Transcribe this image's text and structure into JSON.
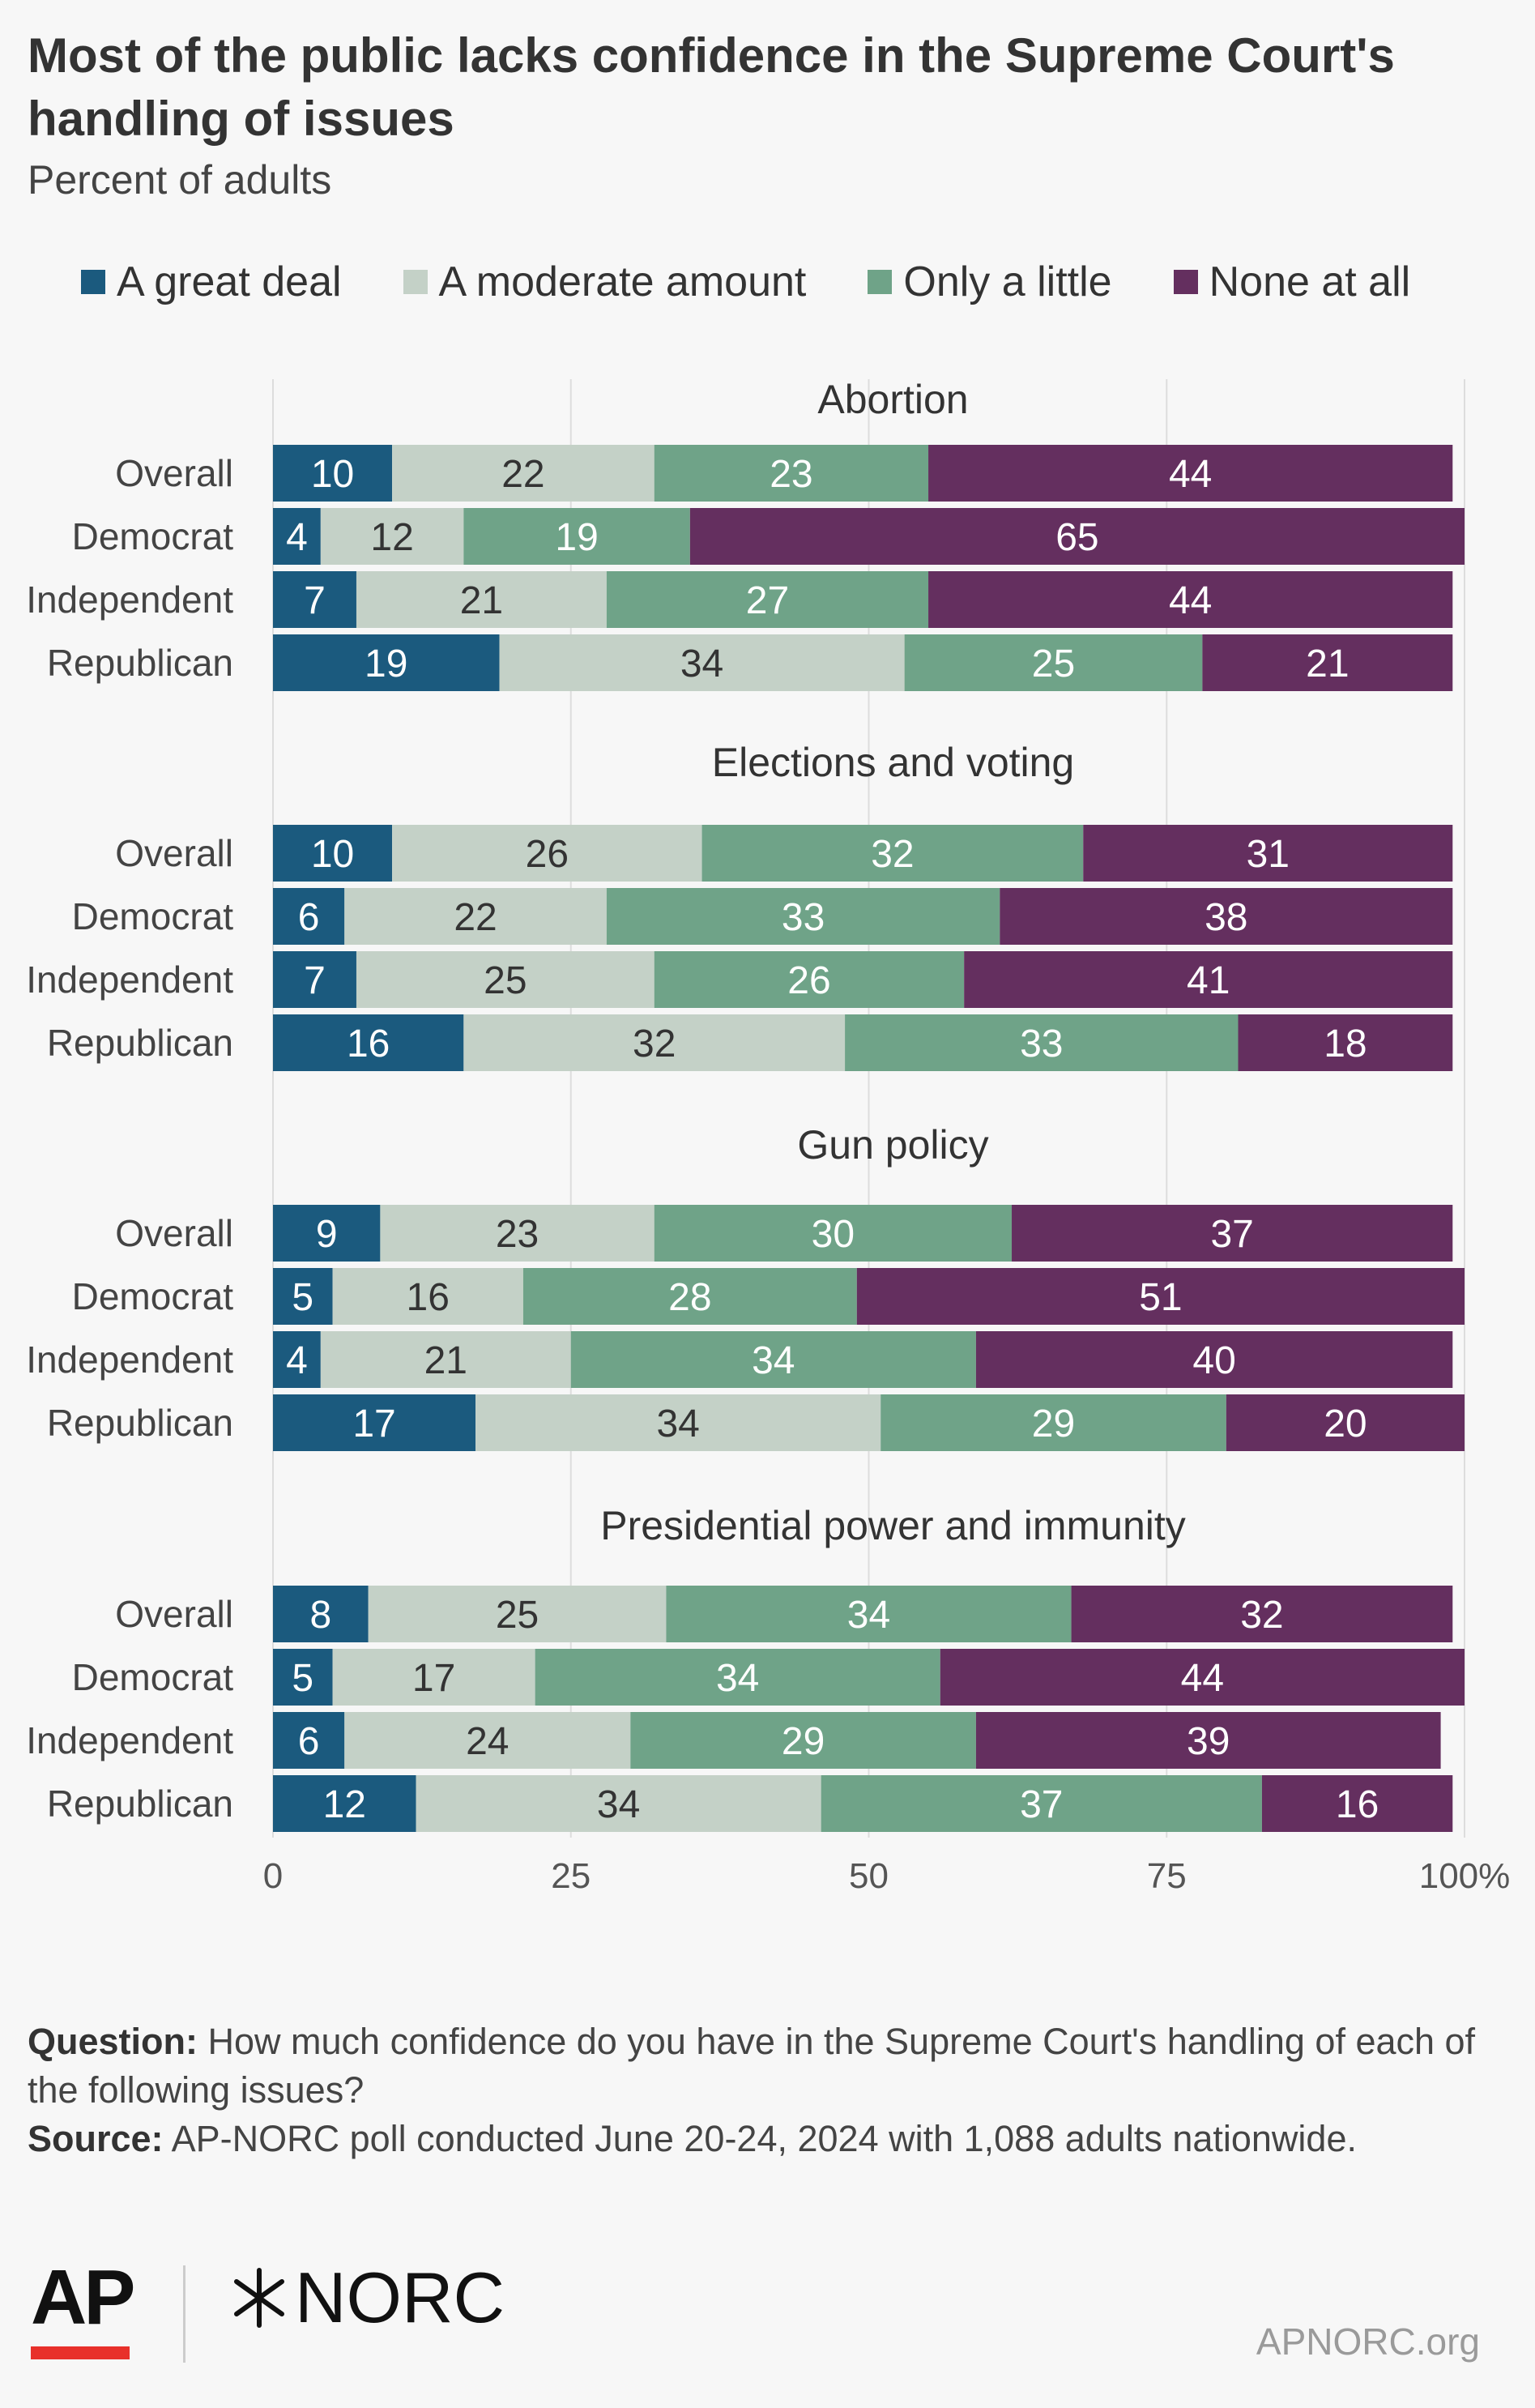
{
  "header": {
    "title": "Most of the public lacks confidence in the Supreme Court's handling of issues",
    "subtitle": "Percent of adults"
  },
  "chart_data": {
    "type": "bar",
    "orientation": "horizontal",
    "stacked": true,
    "xlim": [
      0,
      100
    ],
    "xticks": [
      "0",
      "25",
      "50",
      "75",
      "100%"
    ],
    "grid": true,
    "legend_placement": "top",
    "series": [
      {
        "name": "A great deal",
        "color": "#1b5a7e"
      },
      {
        "name": "A moderate amount",
        "color": "#c4d1c7"
      },
      {
        "name": "Only a little",
        "color": "#6fa388"
      },
      {
        "name": "None at all",
        "color": "#642f5f"
      }
    ],
    "label_colors": [
      "#ffffff",
      "#333333",
      "#ffffff",
      "#ffffff"
    ],
    "panels": [
      {
        "title": "Abortion",
        "rows": [
          {
            "label": "Overall",
            "values": [
              10,
              22,
              23,
              44
            ]
          },
          {
            "label": "Democrat",
            "values": [
              4,
              12,
              19,
              65
            ]
          },
          {
            "label": "Independent",
            "values": [
              7,
              21,
              27,
              44
            ]
          },
          {
            "label": "Republican",
            "values": [
              19,
              34,
              25,
              21
            ]
          }
        ]
      },
      {
        "title": "Elections and voting",
        "rows": [
          {
            "label": "Overall",
            "values": [
              10,
              26,
              32,
              31
            ]
          },
          {
            "label": "Democrat",
            "values": [
              6,
              22,
              33,
              38
            ]
          },
          {
            "label": "Independent",
            "values": [
              7,
              25,
              26,
              41
            ]
          },
          {
            "label": "Republican",
            "values": [
              16,
              32,
              33,
              18
            ]
          }
        ]
      },
      {
        "title": "Gun policy",
        "rows": [
          {
            "label": "Overall",
            "values": [
              9,
              23,
              30,
              37
            ]
          },
          {
            "label": "Democrat",
            "values": [
              5,
              16,
              28,
              51
            ]
          },
          {
            "label": "Independent",
            "values": [
              4,
              21,
              34,
              40
            ]
          },
          {
            "label": "Republican",
            "values": [
              17,
              34,
              29,
              20
            ]
          }
        ]
      },
      {
        "title": "Presidential power and immunity",
        "rows": [
          {
            "label": "Overall",
            "values": [
              8,
              25,
              34,
              32
            ]
          },
          {
            "label": "Democrat",
            "values": [
              5,
              17,
              34,
              44
            ]
          },
          {
            "label": "Independent",
            "values": [
              6,
              24,
              29,
              39
            ]
          },
          {
            "label": "Republican",
            "values": [
              12,
              34,
              37,
              16
            ]
          }
        ]
      }
    ]
  },
  "footer": {
    "question_label": "Question:",
    "question_text": "How much confidence do you have in the Supreme Court's handling of each of the following issues?",
    "source_label": "Source:",
    "source_text": "AP-NORC poll conducted June 20-24, 2024 with 1,088 adults nationwide.",
    "ap_logo_text": "AP",
    "norc_logo_text": "NORC",
    "site": "APNORC.org"
  }
}
